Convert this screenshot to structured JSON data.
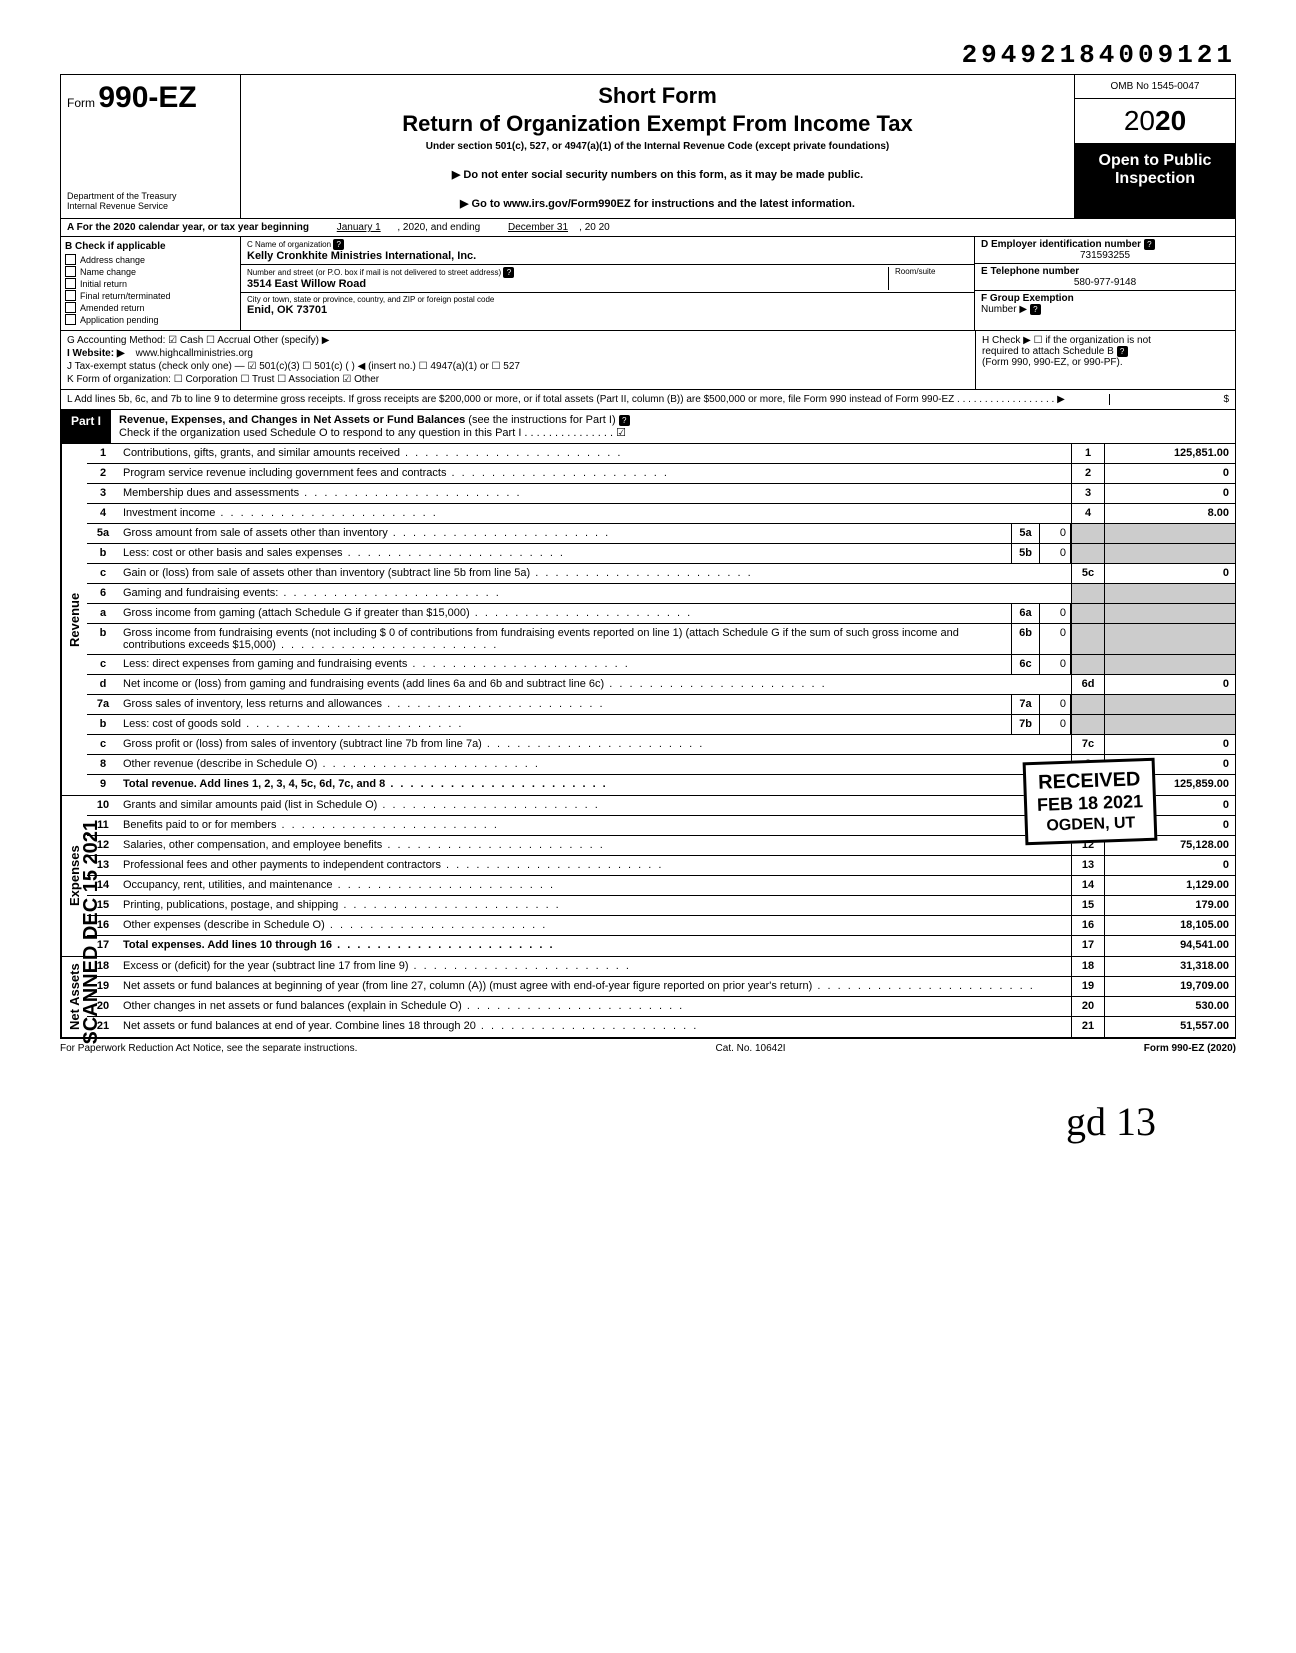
{
  "doc_id": "29492184009121",
  "header": {
    "form_prefix": "Form",
    "form_number": "990-EZ",
    "dept1": "Department of the Treasury",
    "dept2": "Internal Revenue Service",
    "title1": "Short Form",
    "title2": "Return of Organization Exempt From Income Tax",
    "sub": "Under section 501(c), 527, or 4947(a)(1) of the Internal Revenue Code (except private foundations)",
    "arrow1": "▶ Do not enter social security numbers on this form, as it may be made public.",
    "arrow2": "▶ Go to www.irs.gov/Form990EZ for instructions and the latest information.",
    "omb": "OMB No 1545-0047",
    "year_prefix": "20",
    "year_bold": "20",
    "open1": "Open to Public",
    "open2": "Inspection"
  },
  "row_a": {
    "prefix": "A For the 2020 calendar year, or tax year beginning",
    "begin": "January 1",
    "mid": ", 2020, and ending",
    "end": "December 31",
    "suffix": ", 20   20"
  },
  "col_b": {
    "hdr": "B Check if applicable",
    "items": [
      "Address change",
      "Name change",
      "Initial return",
      "Final return/terminated",
      "Amended return",
      "Application pending"
    ]
  },
  "col_c": {
    "lbl_name": "C Name of organization",
    "val_name": "Kelly Cronkhite Ministries International, Inc.",
    "lbl_addr": "Number and street (or P.O. box if mail is not delivered to street address)",
    "lbl_room": "Room/suite",
    "val_addr": "3514 East Willow Road",
    "lbl_city": "City or town, state or province, country, and ZIP or foreign postal code",
    "val_city": "Enid, OK 73701"
  },
  "col_d": {
    "lbl_ein": "D Employer identification number",
    "val_ein": "731593255",
    "lbl_tel": "E Telephone number",
    "val_tel": "580-977-9148",
    "lbl_grp": "F Group Exemption",
    "lbl_grp2": "Number ▶"
  },
  "g_line": "G Accounting Method:   ☑ Cash   ☐ Accrual   Other (specify) ▶",
  "i_line_lbl": "I Website: ▶",
  "i_line_val": "www.highcallministries.org",
  "j_line": "J Tax-exempt status (check only one) — ☑ 501(c)(3)   ☐ 501(c) (      ) ◀ (insert no.) ☐ 4947(a)(1) or   ☐ 527",
  "k_line": "K Form of organization:  ☐ Corporation   ☐ Trust   ☐ Association   ☑ Other",
  "h_line1": "H Check ▶ ☐ if the organization is not",
  "h_line2": "required to attach Schedule B",
  "h_line3": "(Form 990, 990-EZ, or 990-PF).",
  "l_line": "L Add lines 5b, 6c, and 7b to line 9 to determine gross receipts. If gross receipts are $200,000 or more, or if total assets (Part II, column (B)) are $500,000 or more, file Form 990 instead of Form 990-EZ . . . . . . . . . . . . . . . . . . ▶",
  "l_amt": "$",
  "part1": {
    "label": "Part I",
    "title_bold": "Revenue, Expenses, and Changes in Net Assets or Fund Balances",
    "title_rest": " (see the instructions for Part I)",
    "check_line": "Check if the organization used Schedule O to respond to any question in this Part I . . . . . . . . . . . . . . . ☑"
  },
  "side_revenue": "Revenue",
  "side_expenses": "Expenses",
  "side_netassets": "Net Assets",
  "scanned_text": "SCANNED DEC 15 2021",
  "stamp": {
    "r1": "RECEIVED",
    "r2": "FEB 18 2021",
    "r3": "OGDEN, UT"
  },
  "rows": [
    {
      "n": "1",
      "d": "Contributions, gifts, grants, and similar amounts received",
      "box": "1",
      "amt": "125,851.00"
    },
    {
      "n": "2",
      "d": "Program service revenue including government fees and contracts",
      "box": "2",
      "amt": "0"
    },
    {
      "n": "3",
      "d": "Membership dues and assessments",
      "box": "3",
      "amt": "0"
    },
    {
      "n": "4",
      "d": "Investment income",
      "box": "4",
      "amt": "8.00"
    },
    {
      "n": "5a",
      "d": "Gross amount from sale of assets other than inventory",
      "mid_lbl": "5a",
      "mid_val": "0"
    },
    {
      "n": "b",
      "d": "Less: cost or other basis and sales expenses",
      "mid_lbl": "5b",
      "mid_val": "0"
    },
    {
      "n": "c",
      "d": "Gain or (loss) from sale of assets other than inventory (subtract line 5b from line 5a)",
      "box": "5c",
      "amt": "0"
    },
    {
      "n": "6",
      "d": "Gaming and fundraising events:"
    },
    {
      "n": "a",
      "d": "Gross income from gaming (attach Schedule G if greater than $15,000)",
      "mid_lbl": "6a",
      "mid_val": "0"
    },
    {
      "n": "b",
      "d": "Gross income from fundraising events (not including  $                0  of contributions from fundraising events reported on line 1) (attach Schedule G if the sum of such gross income and contributions exceeds $15,000)",
      "mid_lbl": "6b",
      "mid_val": "0"
    },
    {
      "n": "c",
      "d": "Less: direct expenses from gaming and fundraising events",
      "mid_lbl": "6c",
      "mid_val": "0"
    },
    {
      "n": "d",
      "d": "Net income or (loss) from gaming and fundraising events (add lines 6a and 6b and subtract line 6c)",
      "box": "6d",
      "amt": "0"
    },
    {
      "n": "7a",
      "d": "Gross sales of inventory, less returns and allowances",
      "mid_lbl": "7a",
      "mid_val": "0"
    },
    {
      "n": "b",
      "d": "Less: cost of goods sold",
      "mid_lbl": "7b",
      "mid_val": "0"
    },
    {
      "n": "c",
      "d": "Gross profit or (loss) from sales of inventory (subtract line 7b from line 7a)",
      "box": "7c",
      "amt": "0"
    },
    {
      "n": "8",
      "d": "Other revenue (describe in Schedule O)",
      "box": "8",
      "amt": "0"
    },
    {
      "n": "9",
      "d": "Total revenue. Add lines 1, 2, 3, 4, 5c, 6d, 7c, and 8",
      "box": "9",
      "amt": "125,859.00",
      "bold": true
    }
  ],
  "exp_rows": [
    {
      "n": "10",
      "d": "Grants and similar amounts paid (list in Schedule O)",
      "box": "10",
      "amt": "0"
    },
    {
      "n": "11",
      "d": "Benefits paid to or for members",
      "box": "11",
      "amt": "0"
    },
    {
      "n": "12",
      "d": "Salaries, other compensation, and employee benefits",
      "box": "12",
      "amt": "75,128.00"
    },
    {
      "n": "13",
      "d": "Professional fees and other payments to independent contractors",
      "box": "13",
      "amt": "0"
    },
    {
      "n": "14",
      "d": "Occupancy, rent, utilities, and maintenance",
      "box": "14",
      "amt": "1,129.00"
    },
    {
      "n": "15",
      "d": "Printing, publications, postage, and shipping",
      "box": "15",
      "amt": "179.00"
    },
    {
      "n": "16",
      "d": "Other expenses (describe in Schedule O)",
      "box": "16",
      "amt": "18,105.00"
    },
    {
      "n": "17",
      "d": "Total expenses. Add lines 10 through 16",
      "box": "17",
      "amt": "94,541.00",
      "bold": true
    }
  ],
  "na_rows": [
    {
      "n": "18",
      "d": "Excess or (deficit) for the year (subtract line 17 from line 9)",
      "box": "18",
      "amt": "31,318.00"
    },
    {
      "n": "19",
      "d": "Net assets or fund balances at beginning of year (from line 27, column (A)) (must agree with end-of-year figure reported on prior year's return)",
      "box": "19",
      "amt": "19,709.00"
    },
    {
      "n": "20",
      "d": "Other changes in net assets or fund balances (explain in Schedule O)",
      "box": "20",
      "amt": "530.00"
    },
    {
      "n": "21",
      "d": "Net assets or fund balances at end of year. Combine lines 18 through 20",
      "box": "21",
      "amt": "51,557.00"
    }
  ],
  "footer": {
    "left": "For Paperwork Reduction Act Notice, see the separate instructions.",
    "mid": "Cat. No. 10642I",
    "right": "Form 990-EZ (2020)"
  },
  "handwriting": "gd   13"
}
